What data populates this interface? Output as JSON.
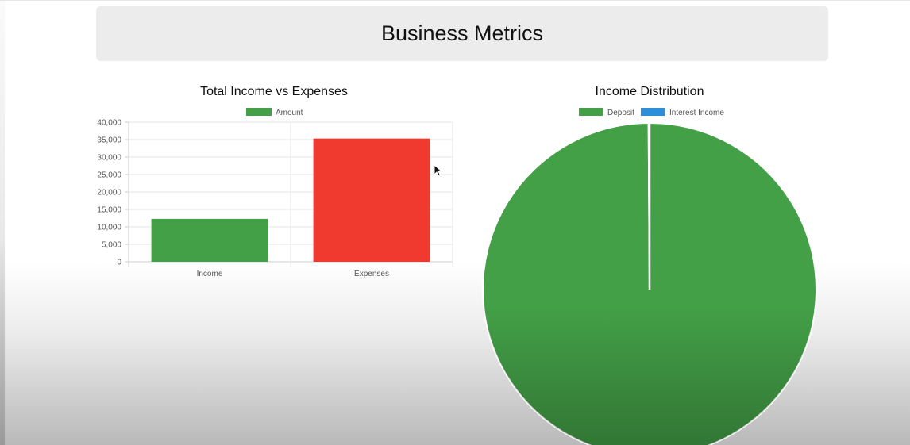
{
  "header": {
    "title": "Business Metrics"
  },
  "chart_data": [
    {
      "type": "bar",
      "title": "Total Income vs Expenses",
      "categories": [
        "Income",
        "Expenses"
      ],
      "series": [
        {
          "name": "Amount",
          "values": [
            12300,
            35300
          ]
        }
      ],
      "bar_colors": [
        "#43a047",
        "#f03a30"
      ],
      "legend_color": "#43a047",
      "ylim": [
        0,
        40000
      ],
      "yticks": [
        "0",
        "5,000",
        "10,000",
        "15,000",
        "20,000",
        "25,000",
        "30,000",
        "35,000",
        "40,000"
      ],
      "ytick_values": [
        0,
        5000,
        10000,
        15000,
        20000,
        25000,
        30000,
        35000,
        40000
      ],
      "grid": true,
      "legend_placement": "top"
    },
    {
      "type": "pie",
      "title": "Income Distribution",
      "labels": [
        "Deposit",
        "Interest Income"
      ],
      "values": [
        99.9,
        0.1
      ],
      "colors": [
        "#43a047",
        "#2d8ed9"
      ],
      "legend_placement": "top"
    }
  ]
}
